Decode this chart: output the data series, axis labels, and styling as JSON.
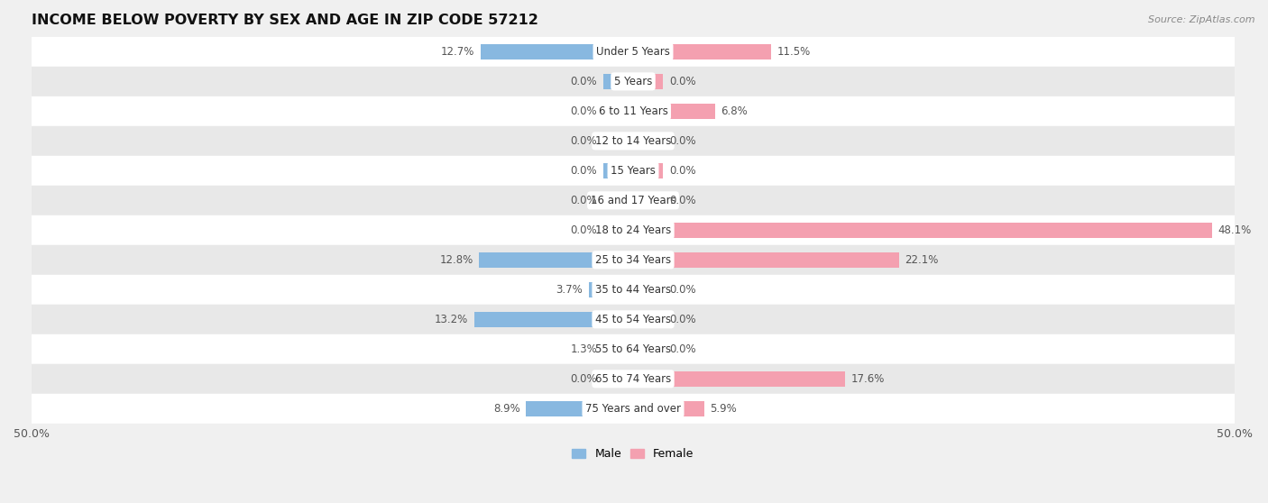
{
  "title": "INCOME BELOW POVERTY BY SEX AND AGE IN ZIP CODE 57212",
  "source": "Source: ZipAtlas.com",
  "categories": [
    "Under 5 Years",
    "5 Years",
    "6 to 11 Years",
    "12 to 14 Years",
    "15 Years",
    "16 and 17 Years",
    "18 to 24 Years",
    "25 to 34 Years",
    "35 to 44 Years",
    "45 to 54 Years",
    "55 to 64 Years",
    "65 to 74 Years",
    "75 Years and over"
  ],
  "male": [
    12.7,
    0.0,
    0.0,
    0.0,
    0.0,
    0.0,
    0.0,
    12.8,
    3.7,
    13.2,
    1.3,
    0.0,
    8.9
  ],
  "female": [
    11.5,
    0.0,
    6.8,
    0.0,
    0.0,
    0.0,
    48.1,
    22.1,
    0.0,
    0.0,
    0.0,
    17.6,
    5.9
  ],
  "male_color": "#88b8e0",
  "female_color": "#f4a0b0",
  "bar_height": 0.52,
  "min_bar": 2.5,
  "xlim": 50.0,
  "background_color": "#f0f0f0",
  "row_bg_colors": [
    "#ffffff",
    "#e8e8e8"
  ],
  "title_fontsize": 11.5,
  "label_fontsize": 8.5,
  "tick_fontsize": 9,
  "legend_fontsize": 9,
  "value_fontsize": 8.5
}
